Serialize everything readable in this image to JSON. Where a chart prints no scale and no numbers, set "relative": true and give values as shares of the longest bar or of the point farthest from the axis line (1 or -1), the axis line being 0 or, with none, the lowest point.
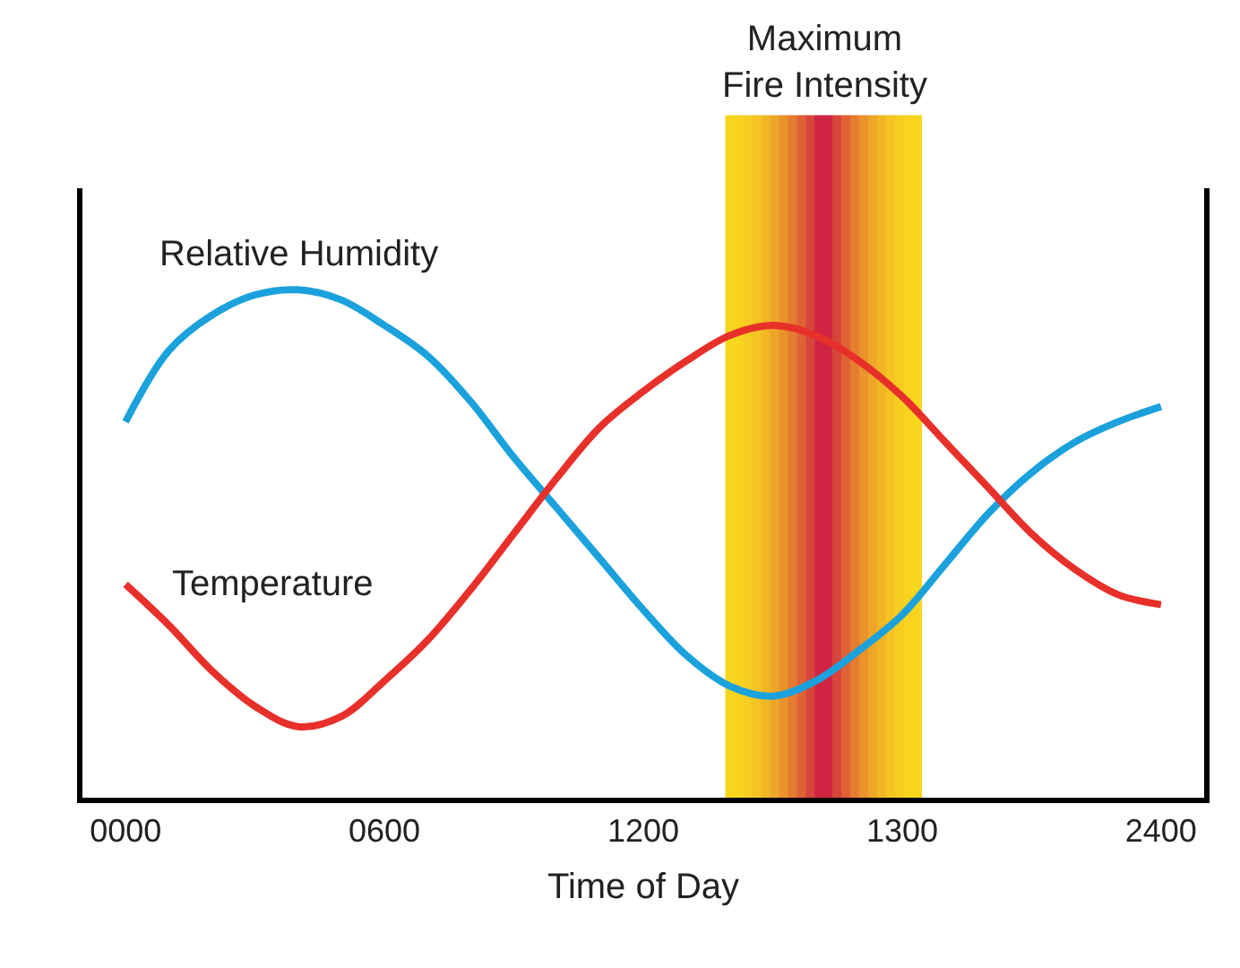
{
  "chart_data": {
    "type": "line",
    "relative": true,
    "xlabel": "Time of Day",
    "categories": [
      "0000",
      null,
      null,
      null,
      null,
      null,
      "0600",
      null,
      null,
      null,
      null,
      null,
      "1200",
      null,
      null,
      null,
      null,
      null,
      "1300",
      null,
      null,
      null,
      null,
      null,
      "2400"
    ],
    "series": [
      {
        "name": "Relative Humidity",
        "color": "#1ba1dc",
        "values": [
          0.74,
          0.88,
          0.95,
          0.99,
          1.0,
          0.98,
          0.93,
          0.87,
          0.78,
          0.67,
          0.57,
          0.47,
          0.37,
          0.28,
          0.22,
          0.2,
          0.23,
          0.29,
          0.36,
          0.46,
          0.56,
          0.64,
          0.7,
          0.74,
          0.77
        ]
      },
      {
        "name": "Temperature",
        "color": "#e8302a",
        "values": [
          0.42,
          0.34,
          0.25,
          0.18,
          0.14,
          0.16,
          0.23,
          0.31,
          0.41,
          0.52,
          0.63,
          0.73,
          0.8,
          0.86,
          0.91,
          0.93,
          0.91,
          0.86,
          0.79,
          0.7,
          0.61,
          0.52,
          0.45,
          0.4,
          0.38
        ]
      }
    ],
    "annotations": [
      "Maximum\nFire Intensity"
    ],
    "grid": false,
    "legend": false,
    "line_style": "solid",
    "marker": "none"
  }
}
